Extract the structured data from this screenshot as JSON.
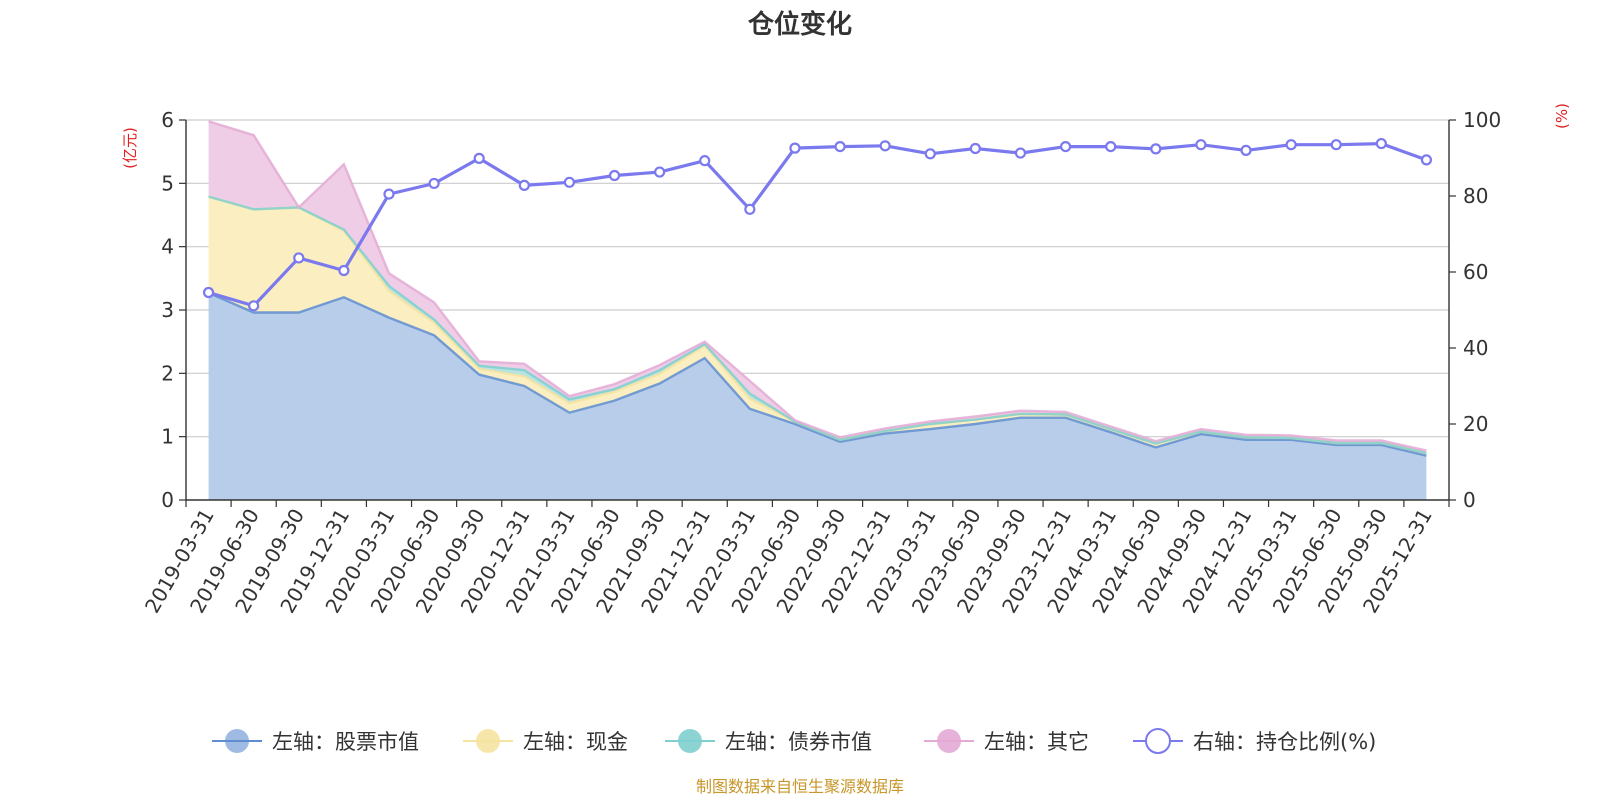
{
  "chart_data": {
    "type": "area",
    "title": "仓位变化",
    "left_unit": "(亿元)",
    "right_unit": "(%)",
    "ylim_left": [
      0,
      6
    ],
    "ylim_right": [
      0,
      100
    ],
    "yticks_left": [
      "0",
      "1",
      "2",
      "3",
      "4",
      "5",
      "6"
    ],
    "yticks_right": [
      "0",
      "20",
      "40",
      "60",
      "80",
      "100"
    ],
    "categories": [
      "2019-03-31",
      "2019-06-30",
      "2019-09-30",
      "2019-12-31",
      "2020-03-31",
      "2020-06-30",
      "2020-09-30",
      "2020-12-31",
      "2021-03-31",
      "2021-06-30",
      "2021-09-30",
      "2021-12-31",
      "2022-03-31",
      "2022-06-30",
      "2022-09-30",
      "2022-12-31",
      "2023-03-31",
      "2023-06-30",
      "2023-09-30",
      "2023-12-31",
      "2024-03-31",
      "2024-06-30",
      "2024-09-30",
      "2024-12-31",
      "2025-03-31",
      "2025-06-30",
      "2025-09-30",
      "2025-12-31"
    ],
    "series": [
      {
        "name": "左轴：股票市值",
        "axis": "left",
        "values": [
          3.27,
          2.96,
          2.96,
          3.2,
          2.88,
          2.6,
          1.98,
          1.8,
          1.38,
          1.57,
          1.84,
          2.24,
          1.44,
          1.2,
          0.92,
          1.05,
          1.12,
          1.2,
          1.3,
          1.3,
          1.07,
          0.83,
          1.04,
          0.95,
          0.95,
          0.87,
          0.87,
          0.7
        ]
      },
      {
        "name": "左轴：现金",
        "axis": "left",
        "values": [
          1.52,
          1.63,
          1.66,
          1.05,
          0.42,
          0.2,
          0.09,
          0.15,
          0.15,
          0.14,
          0.15,
          0.2,
          0.16,
          0.04,
          0.03,
          0.04,
          0.08,
          0.07,
          0.06,
          0.05,
          0.05,
          0.06,
          0.04,
          0.04,
          0.03,
          0.03,
          0.03,
          0.04
        ]
      },
      {
        "name": "左轴：债券市值",
        "axis": "left",
        "values": [
          0,
          0,
          0,
          0.02,
          0.08,
          0.05,
          0.05,
          0.1,
          0.06,
          0.04,
          0.06,
          0.02,
          0.08,
          0,
          0,
          0,
          0,
          0,
          0,
          0,
          0,
          0,
          0,
          0,
          0,
          0,
          0,
          0
        ]
      },
      {
        "name": "左轴：其它",
        "axis": "left",
        "values": [
          1.19,
          1.17,
          0,
          1.03,
          0.2,
          0.27,
          0.07,
          0.1,
          0.05,
          0.08,
          0.08,
          0.04,
          0.2,
          0.02,
          0.04,
          0.04,
          0.04,
          0.05,
          0.05,
          0.04,
          0.04,
          0.04,
          0.04,
          0.04,
          0.04,
          0.04,
          0.04,
          0.04
        ]
      },
      {
        "name": "右轴：持仓比例(%)",
        "axis": "right",
        "values": [
          54.6,
          51.1,
          63.7,
          60.4,
          80.5,
          83.3,
          89.9,
          82.8,
          83.6,
          85.4,
          86.3,
          89.3,
          76.5,
          92.6,
          93.0,
          93.2,
          91.1,
          92.5,
          91.3,
          93.0,
          93.0,
          92.4,
          93.5,
          92.0,
          93.5,
          93.5,
          93.8,
          89.5
        ]
      }
    ],
    "colors": {
      "stock": "#5f8ed0",
      "stock_fill": "#b8cdea",
      "cash": "#f5e3a0",
      "cash_fill": "#fbefc2",
      "bond": "#7fcfcf",
      "bond_fill": "#b7e3e3",
      "other": "#e3aad5",
      "other_fill": "#efcde6",
      "ratio": "#7b79ee",
      "unit": "#e02020",
      "source": "#c8962a"
    }
  },
  "legend": [
    {
      "label": "左轴：股票市值",
      "key": "stock"
    },
    {
      "label": "左轴：现金",
      "key": "cash"
    },
    {
      "label": "左轴：债券市值",
      "key": "bond"
    },
    {
      "label": "左轴：其它",
      "key": "other"
    },
    {
      "label": "右轴：持仓比例(%)",
      "key": "ratio"
    }
  ],
  "source": "制图数据来自恒生聚源数据库"
}
